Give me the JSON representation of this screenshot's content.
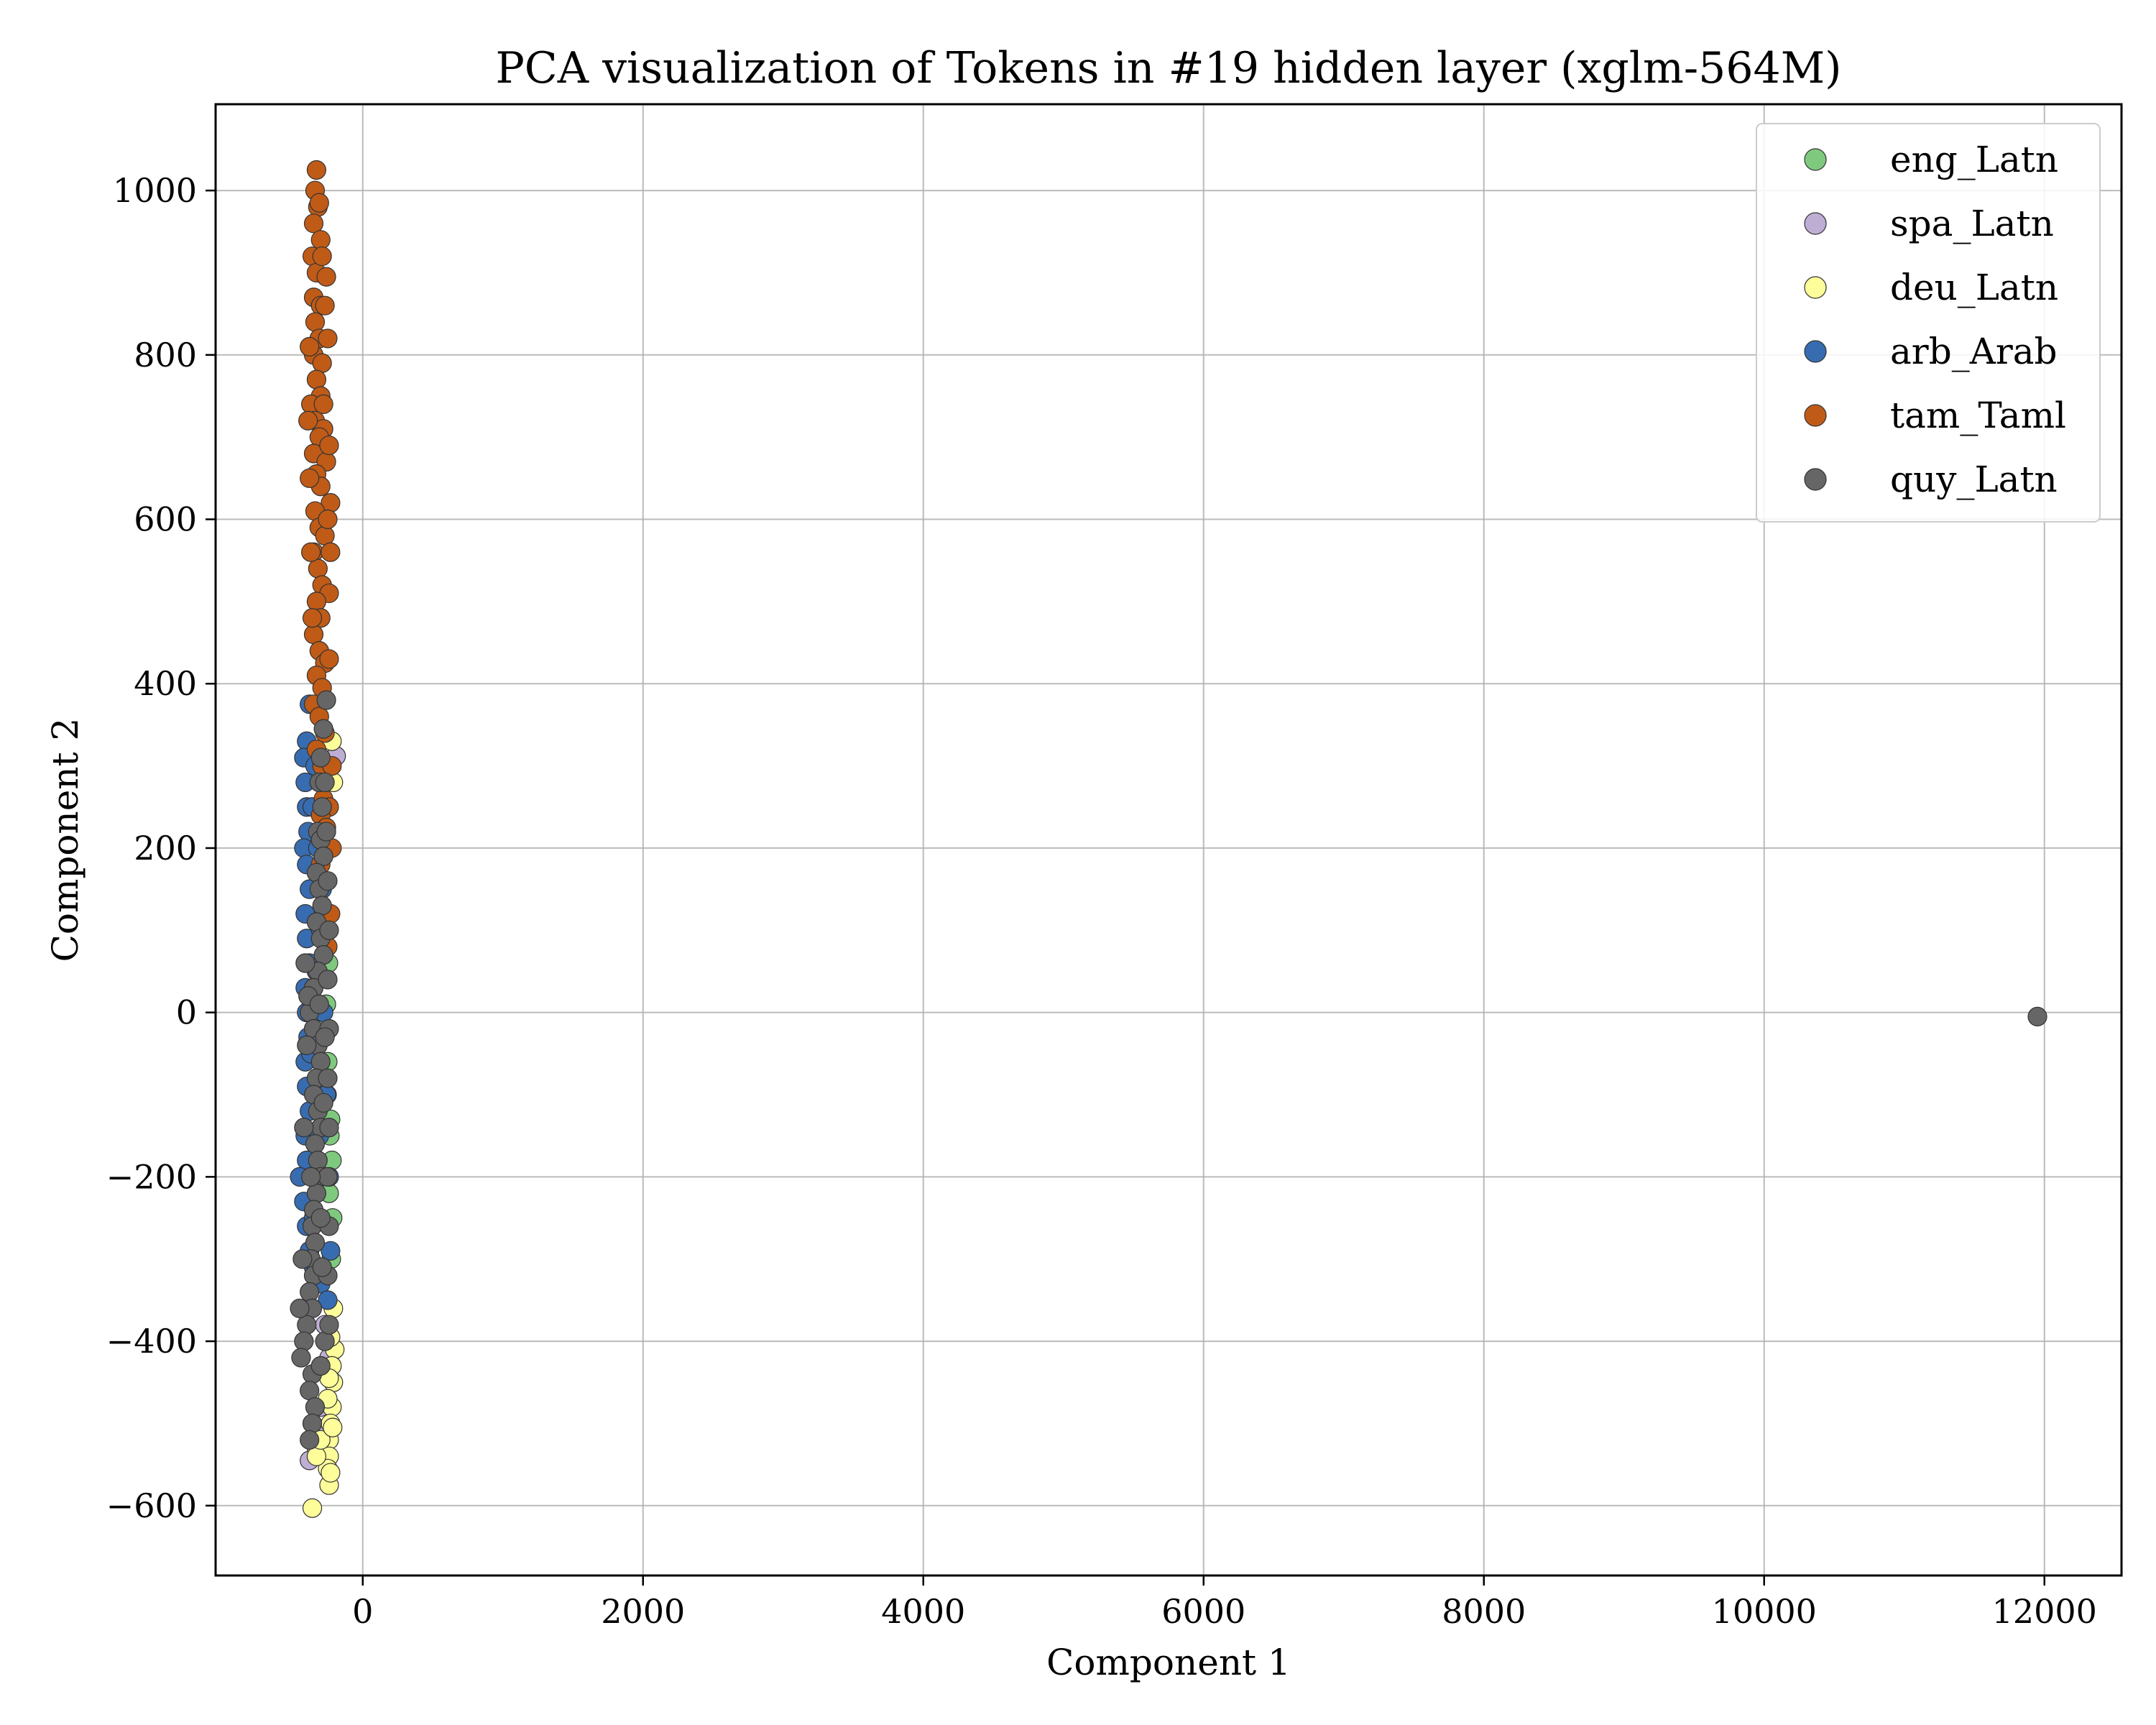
{
  "chart_data": {
    "type": "scatter",
    "title": "PCA visualization of Tokens in #19 hidden layer (xglm-564M)",
    "xlabel": "Component 1",
    "ylabel": "Component 2",
    "xlim": [
      -1050,
      12550
    ],
    "ylim": [
      -685,
      1105
    ],
    "xticks": [
      0,
      2000,
      4000,
      6000,
      8000,
      10000,
      12000
    ],
    "yticks": [
      -600,
      -400,
      -200,
      0,
      200,
      400,
      600,
      800,
      1000
    ],
    "xtick_labels": [
      "0",
      "2000",
      "4000",
      "6000",
      "8000",
      "10000",
      "12000"
    ],
    "ytick_labels": [
      "−600",
      "−400",
      "−200",
      "0",
      "200",
      "400",
      "600",
      "800",
      "1000"
    ],
    "grid": true,
    "legend_position": "top-right",
    "series": [
      {
        "name": "eng_Latn",
        "color": "#7fc97f",
        "points": [
          [
            -230,
            -130
          ],
          [
            -220,
            -180
          ],
          [
            -250,
            -60
          ],
          [
            -240,
            -220
          ],
          [
            -260,
            10
          ],
          [
            -225,
            -300
          ],
          [
            -245,
            60
          ],
          [
            -235,
            -150
          ],
          [
            -215,
            -250
          ],
          [
            -255,
            -100
          ]
        ]
      },
      {
        "name": "spa_Latn",
        "color": "#beaed4",
        "points": [
          [
            -190,
            312
          ],
          [
            -380,
            -545
          ],
          [
            -330,
            -530
          ],
          [
            -300,
            -480
          ],
          [
            -240,
            -420
          ],
          [
            -330,
            -510
          ],
          [
            -270,
            -380
          ],
          [
            -360,
            -500
          ]
        ]
      },
      {
        "name": "deu_Latn",
        "color": "#fdfd99",
        "points": [
          [
            -220,
            330
          ],
          [
            -210,
            280
          ],
          [
            -200,
            -410
          ],
          [
            -210,
            -450
          ],
          [
            -220,
            -480
          ],
          [
            -230,
            -500
          ],
          [
            -240,
            -520
          ],
          [
            -240,
            -540
          ],
          [
            -250,
            -555
          ],
          [
            -240,
            -575
          ],
          [
            -360,
            -603
          ],
          [
            -330,
            -540
          ],
          [
            -300,
            -520
          ],
          [
            -230,
            -560
          ],
          [
            -220,
            -430
          ],
          [
            -250,
            -470
          ],
          [
            -210,
            -360
          ],
          [
            -230,
            -395
          ],
          [
            -240,
            -445
          ],
          [
            -215,
            -505
          ]
        ]
      },
      {
        "name": "arb_Arab",
        "color": "#386cb0",
        "points": [
          [
            -380,
            375
          ],
          [
            -400,
            330
          ],
          [
            -420,
            310
          ],
          [
            -410,
            280
          ],
          [
            -400,
            250
          ],
          [
            -390,
            220
          ],
          [
            -420,
            200
          ],
          [
            -400,
            180
          ],
          [
            -380,
            150
          ],
          [
            -410,
            120
          ],
          [
            -400,
            90
          ],
          [
            -380,
            60
          ],
          [
            -410,
            30
          ],
          [
            -400,
            0
          ],
          [
            -390,
            -30
          ],
          [
            -410,
            -60
          ],
          [
            -400,
            -90
          ],
          [
            -380,
            -120
          ],
          [
            -410,
            -150
          ],
          [
            -400,
            -180
          ],
          [
            -450,
            -200
          ],
          [
            -420,
            -230
          ],
          [
            -400,
            -260
          ],
          [
            -380,
            -290
          ],
          [
            -350,
            -310
          ],
          [
            -300,
            -330
          ],
          [
            -250,
            -350
          ],
          [
            -230,
            -290
          ],
          [
            -240,
            -200
          ],
          [
            -260,
            -100
          ],
          [
            -280,
            0
          ],
          [
            -300,
            100
          ],
          [
            -320,
            200
          ],
          [
            -340,
            300
          ],
          [
            -360,
            250
          ],
          [
            -370,
            -50
          ],
          [
            -350,
            -250
          ],
          [
            -330,
            50
          ],
          [
            -310,
            -150
          ],
          [
            -290,
            150
          ]
        ]
      },
      {
        "name": "tam_Taml",
        "color": "#bf5b17",
        "points": [
          [
            -330,
            1025
          ],
          [
            -340,
            1000
          ],
          [
            -320,
            980
          ],
          [
            -350,
            960
          ],
          [
            -300,
            940
          ],
          [
            -360,
            920
          ],
          [
            -330,
            900
          ],
          [
            -260,
            895
          ],
          [
            -350,
            870
          ],
          [
            -300,
            860
          ],
          [
            -340,
            840
          ],
          [
            -310,
            820
          ],
          [
            -350,
            800
          ],
          [
            -290,
            790
          ],
          [
            -330,
            770
          ],
          [
            -300,
            750
          ],
          [
            -370,
            740
          ],
          [
            -340,
            720
          ],
          [
            -280,
            710
          ],
          [
            -310,
            700
          ],
          [
            -350,
            680
          ],
          [
            -260,
            670
          ],
          [
            -330,
            655
          ],
          [
            -300,
            640
          ],
          [
            -230,
            620
          ],
          [
            -340,
            610
          ],
          [
            -310,
            590
          ],
          [
            -270,
            580
          ],
          [
            -350,
            560
          ],
          [
            -320,
            540
          ],
          [
            -290,
            520
          ],
          [
            -240,
            510
          ],
          [
            -330,
            500
          ],
          [
            -300,
            480
          ],
          [
            -350,
            460
          ],
          [
            -310,
            440
          ],
          [
            -270,
            425
          ],
          [
            -330,
            410
          ],
          [
            -290,
            395
          ],
          [
            -350,
            375
          ],
          [
            -310,
            360
          ],
          [
            -270,
            340
          ],
          [
            -330,
            320
          ],
          [
            -290,
            300
          ],
          [
            -310,
            280
          ],
          [
            -280,
            260
          ],
          [
            -240,
            250
          ],
          [
            -300,
            240
          ],
          [
            -260,
            225
          ],
          [
            -220,
            200
          ],
          [
            -300,
            180
          ],
          [
            -270,
            160
          ],
          [
            -230,
            120
          ],
          [
            -260,
            100
          ],
          [
            -250,
            80
          ],
          [
            -220,
            300
          ],
          [
            -240,
            430
          ],
          [
            -230,
            560
          ],
          [
            -240,
            690
          ],
          [
            -250,
            820
          ],
          [
            -380,
            650
          ],
          [
            -390,
            720
          ],
          [
            -370,
            560
          ],
          [
            -360,
            480
          ],
          [
            -380,
            810
          ],
          [
            -290,
            920
          ],
          [
            -310,
            985
          ],
          [
            -270,
            860
          ],
          [
            -280,
            740
          ],
          [
            -250,
            600
          ]
        ]
      },
      {
        "name": "quy_Latn",
        "color": "#666666",
        "points": [
          [
            11950,
            -5
          ],
          [
            -260,
            380
          ],
          [
            -280,
            345
          ],
          [
            -300,
            310
          ],
          [
            -310,
            280
          ],
          [
            -290,
            250
          ],
          [
            -320,
            220
          ],
          [
            -300,
            210
          ],
          [
            -280,
            190
          ],
          [
            -330,
            170
          ],
          [
            -310,
            150
          ],
          [
            -290,
            130
          ],
          [
            -330,
            110
          ],
          [
            -300,
            90
          ],
          [
            -280,
            70
          ],
          [
            -320,
            50
          ],
          [
            -350,
            30
          ],
          [
            -380,
            0
          ],
          [
            -350,
            -20
          ],
          [
            -320,
            -40
          ],
          [
            -300,
            -60
          ],
          [
            -330,
            -80
          ],
          [
            -350,
            -100
          ],
          [
            -320,
            -120
          ],
          [
            -300,
            -140
          ],
          [
            -340,
            -160
          ],
          [
            -320,
            -180
          ],
          [
            -300,
            -200
          ],
          [
            -330,
            -220
          ],
          [
            -350,
            -240
          ],
          [
            -360,
            -260
          ],
          [
            -340,
            -280
          ],
          [
            -370,
            -300
          ],
          [
            -350,
            -320
          ],
          [
            -380,
            -340
          ],
          [
            -360,
            -360
          ],
          [
            -400,
            -380
          ],
          [
            -420,
            -400
          ],
          [
            -440,
            -420
          ],
          [
            -360,
            -440
          ],
          [
            -380,
            -460
          ],
          [
            -340,
            -480
          ],
          [
            -360,
            -500
          ],
          [
            -380,
            -520
          ],
          [
            -300,
            -430
          ],
          [
            -270,
            -400
          ],
          [
            -240,
            -380
          ],
          [
            -250,
            -320
          ],
          [
            -240,
            -260
          ],
          [
            -250,
            -200
          ],
          [
            -240,
            -140
          ],
          [
            -250,
            -80
          ],
          [
            -240,
            -20
          ],
          [
            -250,
            40
          ],
          [
            -240,
            100
          ],
          [
            -250,
            160
          ],
          [
            -260,
            220
          ],
          [
            -270,
            280
          ],
          [
            -410,
            60
          ],
          [
            -400,
            -40
          ],
          [
            -420,
            -140
          ],
          [
            -430,
            -300
          ],
          [
            -450,
            -360
          ],
          [
            -390,
            20
          ],
          [
            -370,
            -200
          ],
          [
            -310,
            10
          ],
          [
            -290,
            -310
          ],
          [
            -280,
            -110
          ],
          [
            -270,
            -30
          ],
          [
            -300,
            -250
          ]
        ]
      }
    ]
  }
}
